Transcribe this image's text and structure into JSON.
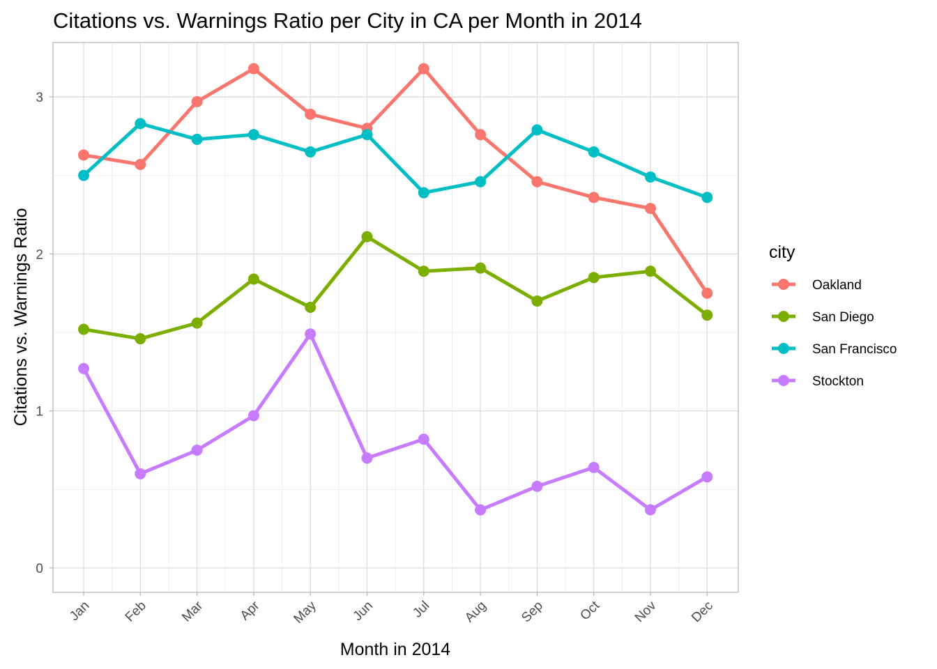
{
  "chart_data": {
    "type": "line",
    "title": "Citations vs. Warnings Ratio per City in CA per Month in 2014",
    "xlabel": "Month in 2014",
    "ylabel": "Citations vs. Warnings Ratio",
    "categories": [
      "Jan",
      "Feb",
      "Mar",
      "Apr",
      "May",
      "Jun",
      "Jul",
      "Aug",
      "Sep",
      "Oct",
      "Nov",
      "Dec"
    ],
    "yticks": [
      "0",
      "1",
      "2",
      "3"
    ],
    "ylim": [
      -0.15,
      3.35
    ],
    "grid": true,
    "legend": {
      "title": "city",
      "placement": "right"
    },
    "series": [
      {
        "name": "Oakland",
        "color": "#F8766D",
        "values": [
          2.63,
          2.57,
          2.97,
          3.18,
          2.89,
          2.8,
          3.18,
          2.76,
          2.46,
          2.36,
          2.29,
          1.75
        ]
      },
      {
        "name": "San Diego",
        "color": "#7CAE00",
        "values": [
          1.52,
          1.46,
          1.56,
          1.84,
          1.66,
          2.11,
          1.89,
          1.91,
          1.7,
          1.85,
          1.89,
          1.61
        ]
      },
      {
        "name": "San Francisco",
        "color": "#00BFC4",
        "values": [
          2.5,
          2.83,
          2.73,
          2.76,
          2.65,
          2.76,
          2.39,
          2.46,
          2.79,
          2.65,
          2.49,
          2.36
        ]
      },
      {
        "name": "Stockton",
        "color": "#C77CFF",
        "values": [
          1.27,
          0.6,
          0.75,
          0.97,
          1.49,
          0.7,
          0.82,
          0.37,
          0.52,
          0.64,
          0.37,
          0.58
        ]
      }
    ]
  }
}
